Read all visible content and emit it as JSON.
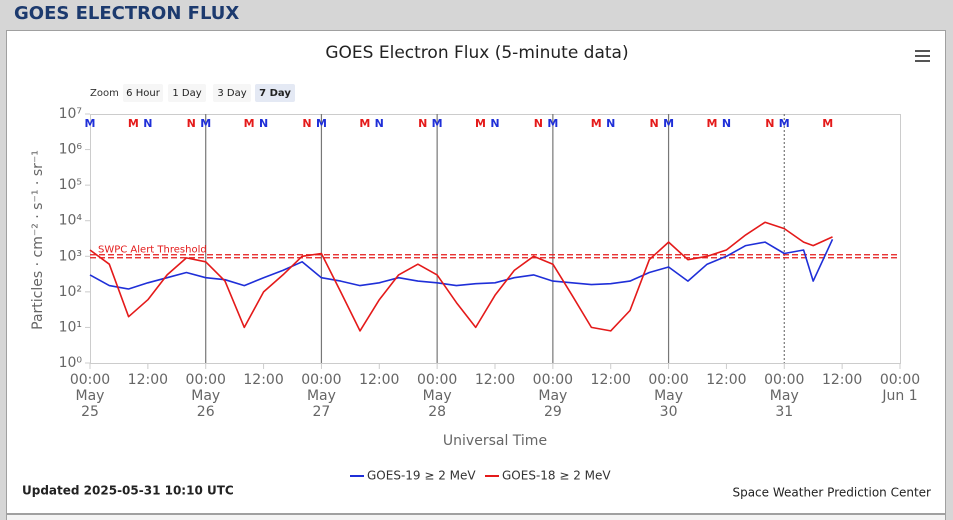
{
  "header": {
    "title": "GOES ELECTRON FLUX"
  },
  "chart_data": {
    "type": "line",
    "title": "GOES Electron Flux (5-minute data)",
    "zoom": {
      "label": "Zoom",
      "options": [
        "6 Hour",
        "1 Day",
        "3 Day",
        "7 Day"
      ],
      "selected_index": 3
    },
    "x_label": "Universal Time",
    "y_label": "Particles · cm⁻² · s⁻¹ · sr⁻¹",
    "log_y": true,
    "xlim": [
      "May 25 00:00",
      "Jun 1 00:00"
    ],
    "xticks": [
      {
        "value": "May 25 00:00",
        "label": "00:00\nMay\n25"
      },
      {
        "value": "May 25 12:00",
        "label": "12:00"
      },
      {
        "value": "May 26 00:00",
        "label": "00:00\nMay\n26"
      },
      {
        "value": "May 26 12:00",
        "label": "12:00"
      },
      {
        "value": "May 27 00:00",
        "label": "00:00\nMay\n27"
      },
      {
        "value": "May 27 12:00",
        "label": "12:00"
      },
      {
        "value": "May 28 00:00",
        "label": "00:00\nMay\n28"
      },
      {
        "value": "May 28 12:00",
        "label": "12:00"
      },
      {
        "value": "May 29 00:00",
        "label": "00:00\nMay\n29"
      },
      {
        "value": "May 29 12:00",
        "label": "12:00"
      },
      {
        "value": "May 30 00:00",
        "label": "00:00\nMay\n30"
      },
      {
        "value": "May 30 12:00",
        "label": "12:00"
      },
      {
        "value": "May 31 00:00",
        "label": "00:00\nMay\n31"
      },
      {
        "value": "May 31 12:00",
        "label": "12:00"
      },
      {
        "value": "Jun 1 00:00",
        "label": "00:00\nJun 1"
      }
    ],
    "ylim": [
      1,
      10000000
    ],
    "yticks": [
      {
        "value": 1,
        "label": "10⁰"
      },
      {
        "value": 10,
        "label": "10¹"
      },
      {
        "value": 100,
        "label": "10²"
      },
      {
        "value": 1000,
        "label": "10³"
      },
      {
        "value": 10000,
        "label": "10⁴"
      },
      {
        "value": 100000,
        "label": "10⁵"
      },
      {
        "value": 1000000,
        "label": "10⁶"
      },
      {
        "value": 10000000,
        "label": "10⁷"
      }
    ],
    "x": [
      "May 25 00:00",
      "May 25 04:00",
      "May 25 08:00",
      "May 25 12:00",
      "May 25 16:00",
      "May 25 20:00",
      "May 26 00:00",
      "May 26 04:00",
      "May 26 08:00",
      "May 26 12:00",
      "May 26 16:00",
      "May 26 20:00",
      "May 27 00:00",
      "May 27 04:00",
      "May 27 08:00",
      "May 27 12:00",
      "May 27 16:00",
      "May 27 20:00",
      "May 28 00:00",
      "May 28 04:00",
      "May 28 08:00",
      "May 28 12:00",
      "May 28 16:00",
      "May 28 20:00",
      "May 29 00:00",
      "May 29 04:00",
      "May 29 08:00",
      "May 29 12:00",
      "May 29 16:00",
      "May 29 20:00",
      "May 30 00:00",
      "May 30 04:00",
      "May 30 08:00",
      "May 30 12:00",
      "May 30 16:00",
      "May 30 20:00",
      "May 31 00:00",
      "May 31 04:00",
      "May 31 06:00",
      "May 31 10:00"
    ],
    "series": [
      {
        "name": "GOES-19 ≥ 2 MeV",
        "color": "#1f2fd8",
        "values": [
          300,
          150,
          120,
          180,
          250,
          350,
          250,
          220,
          150,
          250,
          400,
          700,
          250,
          200,
          150,
          180,
          250,
          200,
          180,
          150,
          170,
          180,
          250,
          300,
          200,
          180,
          160,
          170,
          200,
          350,
          500,
          200,
          600,
          1000,
          2000,
          2500,
          1200,
          1500,
          200,
          3000
        ]
      },
      {
        "name": "GOES-18 ≥ 2 MeV",
        "color": "#e41a1a",
        "values": [
          1500,
          600,
          20,
          60,
          300,
          900,
          700,
          200,
          10,
          100,
          300,
          1000,
          1200,
          100,
          8,
          60,
          300,
          600,
          300,
          50,
          10,
          80,
          400,
          1000,
          600,
          80,
          10,
          8,
          30,
          800,
          2500,
          800,
          1000,
          1500,
          4000,
          9000,
          6000,
          2500,
          2000,
          3500
        ]
      }
    ],
    "threshold": {
      "value": 1000,
      "label": "SWPC Alert Threshold",
      "color": "#e41a1a"
    },
    "markers": [
      {
        "label": "M",
        "time": "May 25 00:00",
        "color": "#1f2fd8"
      },
      {
        "label": "M",
        "time": "May 25 09:00",
        "color": "#e41a1a"
      },
      {
        "label": "N",
        "time": "May 25 12:00",
        "color": "#1f2fd8"
      },
      {
        "label": "N",
        "time": "May 25 21:00",
        "color": "#e41a1a"
      },
      {
        "label": "M",
        "time": "May 26 00:00",
        "color": "#1f2fd8"
      },
      {
        "label": "M",
        "time": "May 26 09:00",
        "color": "#e41a1a"
      },
      {
        "label": "N",
        "time": "May 26 12:00",
        "color": "#1f2fd8"
      },
      {
        "label": "N",
        "time": "May 26 21:00",
        "color": "#e41a1a"
      },
      {
        "label": "M",
        "time": "May 27 00:00",
        "color": "#1f2fd8"
      },
      {
        "label": "M",
        "time": "May 27 09:00",
        "color": "#e41a1a"
      },
      {
        "label": "N",
        "time": "May 27 12:00",
        "color": "#1f2fd8"
      },
      {
        "label": "N",
        "time": "May 27 21:00",
        "color": "#e41a1a"
      },
      {
        "label": "M",
        "time": "May 28 00:00",
        "color": "#1f2fd8"
      },
      {
        "label": "M",
        "time": "May 28 09:00",
        "color": "#e41a1a"
      },
      {
        "label": "N",
        "time": "May 28 12:00",
        "color": "#1f2fd8"
      },
      {
        "label": "N",
        "time": "May 28 21:00",
        "color": "#e41a1a"
      },
      {
        "label": "M",
        "time": "May 29 00:00",
        "color": "#1f2fd8"
      },
      {
        "label": "M",
        "time": "May 29 09:00",
        "color": "#e41a1a"
      },
      {
        "label": "N",
        "time": "May 29 12:00",
        "color": "#1f2fd8"
      },
      {
        "label": "N",
        "time": "May 29 21:00",
        "color": "#e41a1a"
      },
      {
        "label": "M",
        "time": "May 30 00:00",
        "color": "#1f2fd8"
      },
      {
        "label": "M",
        "time": "May 30 09:00",
        "color": "#e41a1a"
      },
      {
        "label": "N",
        "time": "May 30 12:00",
        "color": "#1f2fd8"
      },
      {
        "label": "N",
        "time": "May 30 21:00",
        "color": "#e41a1a"
      },
      {
        "label": "M",
        "time": "May 31 00:00",
        "color": "#1f2fd8"
      },
      {
        "label": "M",
        "time": "May 31 09:00",
        "color": "#e41a1a"
      }
    ],
    "updated": "Updated 2025-05-31 10:10 UTC",
    "credit": "Space Weather Prediction Center"
  }
}
